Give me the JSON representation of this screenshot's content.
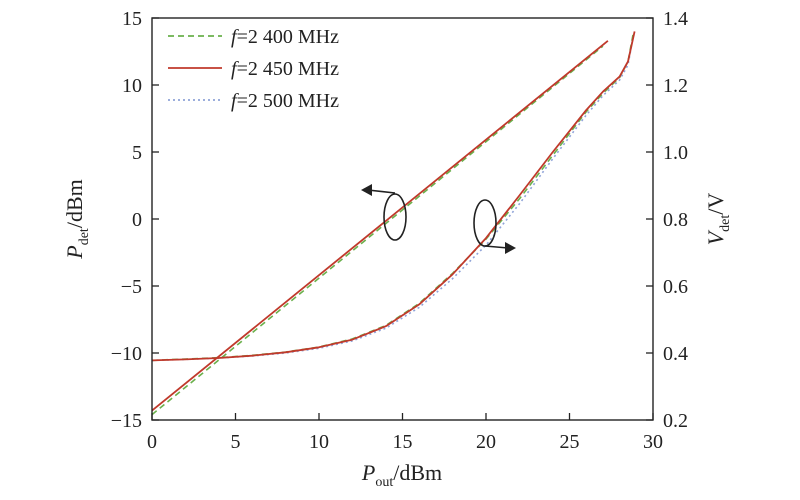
{
  "chart_data": {
    "type": "line",
    "xlabel": {
      "main": "P",
      "sub": "out",
      "unit": "/dBm"
    },
    "ylabel_left": {
      "main": "P",
      "sub": "det",
      "unit": "/dBm"
    },
    "ylabel_right": {
      "main": "V",
      "sub": "det",
      "unit": "/V"
    },
    "xlim": [
      0,
      30
    ],
    "ylim_left": [
      -15,
      15
    ],
    "ylim_right": [
      0.2,
      1.4
    ],
    "xticks": [
      0,
      5,
      10,
      15,
      20,
      25,
      30
    ],
    "yticks_left": [
      -15,
      -10,
      -5,
      0,
      5,
      10,
      15
    ],
    "yticks_right": [
      0.2,
      0.4,
      0.6,
      0.8,
      1.0,
      1.2,
      1.4
    ],
    "grid": false,
    "legend_position": "top-left",
    "legend": [
      {
        "prefix": "f",
        "text": "=2 400 MHz",
        "color": "#6ab04c",
        "dash": "dashed"
      },
      {
        "prefix": "f",
        "text": "=2 450 MHz",
        "color": "#c0392b",
        "dash": "solid"
      },
      {
        "prefix": "f",
        "text": "=2 500 MHz",
        "color": "#8fa3d8",
        "dash": "dotted"
      }
    ],
    "series": [
      {
        "name": "f=2 400 MHz",
        "axis": "left",
        "color": "#6ab04c",
        "dash": "dashed",
        "x": [
          0,
          27
        ],
        "y": [
          -14.6,
          12.9
        ]
      },
      {
        "name": "f=2 450 MHz",
        "axis": "left",
        "color": "#c0392b",
        "dash": "solid",
        "x": [
          0,
          27.3
        ],
        "y": [
          -14.3,
          13.3
        ]
      },
      {
        "name": "f=2 400 MHz",
        "axis": "right",
        "color": "#6ab04c",
        "dash": "dashed",
        "x": [
          0,
          2,
          4,
          6,
          8,
          10,
          12,
          14,
          16,
          18,
          20,
          22,
          24,
          26,
          27,
          28,
          28.5,
          28.8
        ],
        "y": [
          0.378,
          0.382,
          0.386,
          0.393,
          0.403,
          0.418,
          0.442,
          0.482,
          0.548,
          0.638,
          0.74,
          0.86,
          0.99,
          1.12,
          1.175,
          1.222,
          1.27,
          1.35
        ]
      },
      {
        "name": "f=2 450 MHz",
        "axis": "right",
        "color": "#c0392b",
        "dash": "solid",
        "x": [
          0,
          2,
          4,
          6,
          8,
          10,
          12,
          14,
          16,
          18,
          20,
          22,
          24,
          26,
          27,
          28,
          28.5,
          28.9
        ],
        "y": [
          0.378,
          0.381,
          0.385,
          0.392,
          0.402,
          0.417,
          0.44,
          0.48,
          0.545,
          0.635,
          0.743,
          0.87,
          1.0,
          1.125,
          1.18,
          1.225,
          1.27,
          1.36
        ]
      },
      {
        "name": "f=2 500 MHz",
        "axis": "right",
        "color": "#8fa3d8",
        "dash": "dotted",
        "x": [
          0,
          2,
          4,
          6,
          8,
          10,
          12,
          14,
          16,
          18,
          20,
          22,
          24,
          26,
          27,
          28,
          28.5,
          28.8
        ],
        "y": [
          0.378,
          0.381,
          0.385,
          0.391,
          0.4,
          0.414,
          0.436,
          0.474,
          0.536,
          0.622,
          0.722,
          0.845,
          0.98,
          1.11,
          1.168,
          1.215,
          1.26,
          1.34
        ]
      }
    ]
  }
}
